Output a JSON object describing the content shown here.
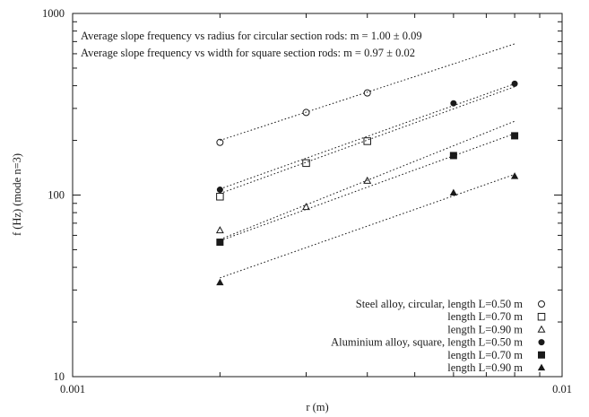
{
  "chart_data": {
    "type": "scatter",
    "xscale": "log",
    "yscale": "log",
    "xlim": [
      0.001,
      0.01
    ],
    "ylim": [
      10,
      1000
    ],
    "xlabel": "r (m)",
    "ylabel": "f (Hz) (mode n=3)",
    "x_tick_labels": [
      {
        "value": 0.001,
        "label": "0.001"
      },
      {
        "value": 0.01,
        "label": "0.01"
      }
    ],
    "y_tick_labels": [
      {
        "value": 10,
        "label": "10"
      },
      {
        "value": 100,
        "label": "100"
      },
      {
        "value": 1000,
        "label": "1000"
      }
    ],
    "annotations": [
      "Average slope frequency vs radius for circular section rods: m = 1.00 ±  0.09",
      "Average slope frequency vs width for square section rods: m = 0.97 ±  0.02"
    ],
    "grid": false,
    "legend_position": "bottom-right",
    "series": [
      {
        "name": "Steel alloy, circular, length L=0.50 m",
        "marker": "open-circle",
        "x": [
          0.002,
          0.003,
          0.004,
          0.006,
          0.008
        ],
        "y": [
          195,
          285,
          365,
          null,
          null
        ],
        "fit": {
          "x": [
            0.002,
            0.008
          ],
          "y": [
            200,
            680
          ]
        }
      },
      {
        "name": "length L=0.70 m",
        "marker": "open-square",
        "x": [
          0.002,
          0.003,
          0.004,
          0.006,
          0.008
        ],
        "y": [
          98,
          150,
          198,
          null,
          null
        ],
        "fit": {
          "x": [
            0.002,
            0.008
          ],
          "y": [
            102,
            395
          ]
        }
      },
      {
        "name": "length L=0.90 m",
        "marker": "open-triangle",
        "x": [
          0.002,
          0.003,
          0.004,
          0.006,
          0.008
        ],
        "y": [
          64,
          86,
          120,
          null,
          null
        ],
        "fit": {
          "x": [
            0.002,
            0.008
          ],
          "y": [
            57,
            255
          ]
        }
      },
      {
        "name": "Aluminium alloy, square, length L=0.50 m",
        "marker": "filled-circle",
        "x": [
          0.002,
          0.003,
          0.004,
          0.006,
          0.008
        ],
        "y": [
          107,
          null,
          null,
          320,
          410
        ],
        "fit": {
          "x": [
            0.002,
            0.008
          ],
          "y": [
            108,
            410
          ]
        }
      },
      {
        "name": "length L=0.70 m",
        "marker": "filled-square",
        "x": [
          0.002,
          0.003,
          0.004,
          0.006,
          0.008
        ],
        "y": [
          55,
          null,
          null,
          165,
          212
        ],
        "fit": {
          "x": [
            0.002,
            0.008
          ],
          "y": [
            56,
            218
          ]
        }
      },
      {
        "name": "length L=0.90 m",
        "marker": "filled-triangle",
        "x": [
          0.002,
          0.003,
          0.004,
          0.006,
          0.008
        ],
        "y": [
          33,
          null,
          null,
          103,
          127
        ],
        "fit": {
          "x": [
            0.002,
            0.008
          ],
          "y": [
            35,
            130
          ]
        }
      }
    ]
  }
}
